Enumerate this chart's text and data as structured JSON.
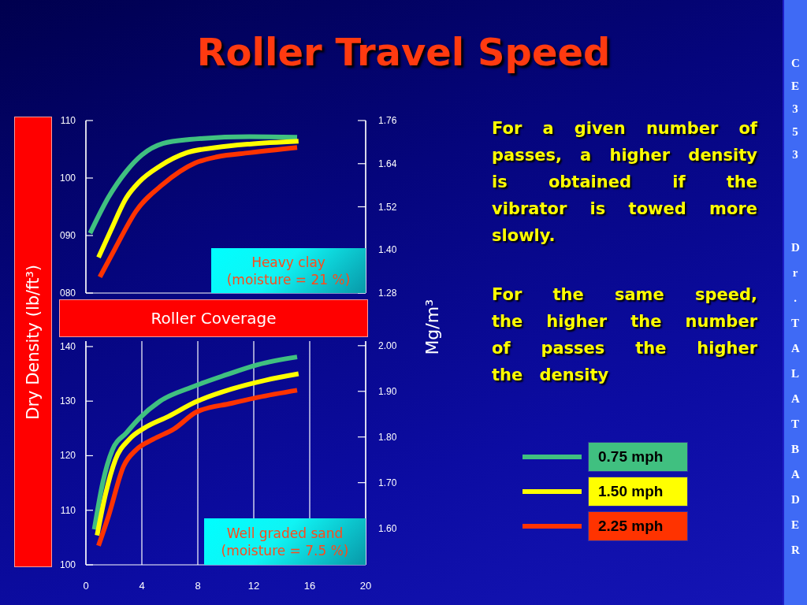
{
  "chart_data": [
    {
      "type": "line",
      "title": "Roller Travel Speed",
      "ylabel": "Dry Density (lb/ft³)",
      "y2label": "Mg/m³",
      "annotations": [
        "Heavy clay (moisture = 21 %)",
        "For a given number of passes, a higher density is obtained if the vibrator is towed more slowly.",
        "For the same speed, the higher the number of passes the higher the density",
        "CE353",
        "Dr. TALAT BADER"
      ],
      "xlim": [
        0,
        20
      ],
      "xticks": [
        0,
        4,
        8,
        12,
        16,
        20
      ],
      "ylim": [
        80,
        110
      ],
      "yticks": [
        {
          "value": 80,
          "label": "080"
        },
        {
          "value": 90,
          "label": "090"
        },
        100,
        110
      ],
      "y2lim": [
        1.28,
        1.76
      ],
      "y2ticks": [
        1.28,
        {
          "value": 1.4,
          "label": "1.40"
        },
        1.52,
        1.64,
        1.76
      ],
      "tick_labels": "y",
      "grid": "x",
      "series": [
        {
          "color": "#40c080",
          "x": [
            0.3,
            1.6,
            2.9,
            4,
            5.5,
            7.4,
            11.7,
            15.1
          ],
          "values": [
            90.4,
            96.6,
            101.2,
            104,
            106,
            106.7,
            107.2,
            107.1
          ]
        },
        {
          "color": "#ffff00",
          "x": [
            0.9,
            1.8,
            2.9,
            3.8,
            5.3,
            7.2,
            9.3,
            11.7,
            15.2
          ],
          "values": [
            86.2,
            91,
            96.6,
            99.3,
            102.1,
            104.4,
            105.3,
            105.9,
            106.4
          ]
        },
        {
          "color": "#ff3300",
          "x": [
            1,
            2.1,
            3.6,
            5.5,
            7.8,
            9.4,
            11.7,
            15.1
          ],
          "values": [
            82.8,
            87.8,
            94.3,
            98.9,
            102.6,
            103.7,
            104.4,
            105.3
          ]
        }
      ]
    },
    {
      "type": "line",
      "xlabel": "Roller Coverage",
      "annotations": [
        "Well graded sand (moisture = 7.5 %)"
      ],
      "xlim": [
        0,
        20
      ],
      "xticks": [
        0,
        4,
        8,
        12,
        16,
        20
      ],
      "ylim": [
        100,
        141
      ],
      "yticks": [
        100,
        110,
        120,
        130,
        140
      ],
      "y2lim": [
        1.52,
        2.01
      ],
      "y2ticks": [
        {
          "value": 1.6,
          "label": "1.60"
        },
        {
          "value": 1.7,
          "label": "1.70"
        },
        {
          "value": 1.8,
          "label": "1.80"
        },
        {
          "value": 1.9,
          "label": "1.90"
        },
        {
          "value": 2,
          "label": "2.00"
        }
      ],
      "grid": "x",
      "legend": "right",
      "series": [
        {
          "name": "0.75 mph",
          "color": "#40c080",
          "x": [
            0.6,
            1.2,
            1.9,
            2.9,
            3.8,
            5.3,
            7.6,
            10,
            12.3,
            15.1
          ],
          "values": [
            106.5,
            115,
            121.1,
            124.2,
            126.8,
            130,
            132.6,
            134.8,
            136.7,
            138.1
          ]
        },
        {
          "name": "1.50 mph",
          "color": "#ffff00",
          "x": [
            0.8,
            1.4,
            2.1,
            3.1,
            4.2,
            5.9,
            7.8,
            10.4,
            12.8,
            15.2
          ],
          "values": [
            105.4,
            112.9,
            119.2,
            123,
            125.1,
            127.2,
            129.8,
            132.2,
            133.8,
            135
          ]
        },
        {
          "name": "2.25 mph",
          "color": "#ff3300",
          "x": [
            0.9,
            1.6,
            2.7,
            3.6,
            4.8,
            6.3,
            7.9,
            10.4,
            12.3,
            15.1
          ],
          "values": [
            103.5,
            108.8,
            118.1,
            121.1,
            123,
            124.9,
            128,
            129.6,
            130.7,
            132
          ]
        }
      ]
    }
  ]
}
